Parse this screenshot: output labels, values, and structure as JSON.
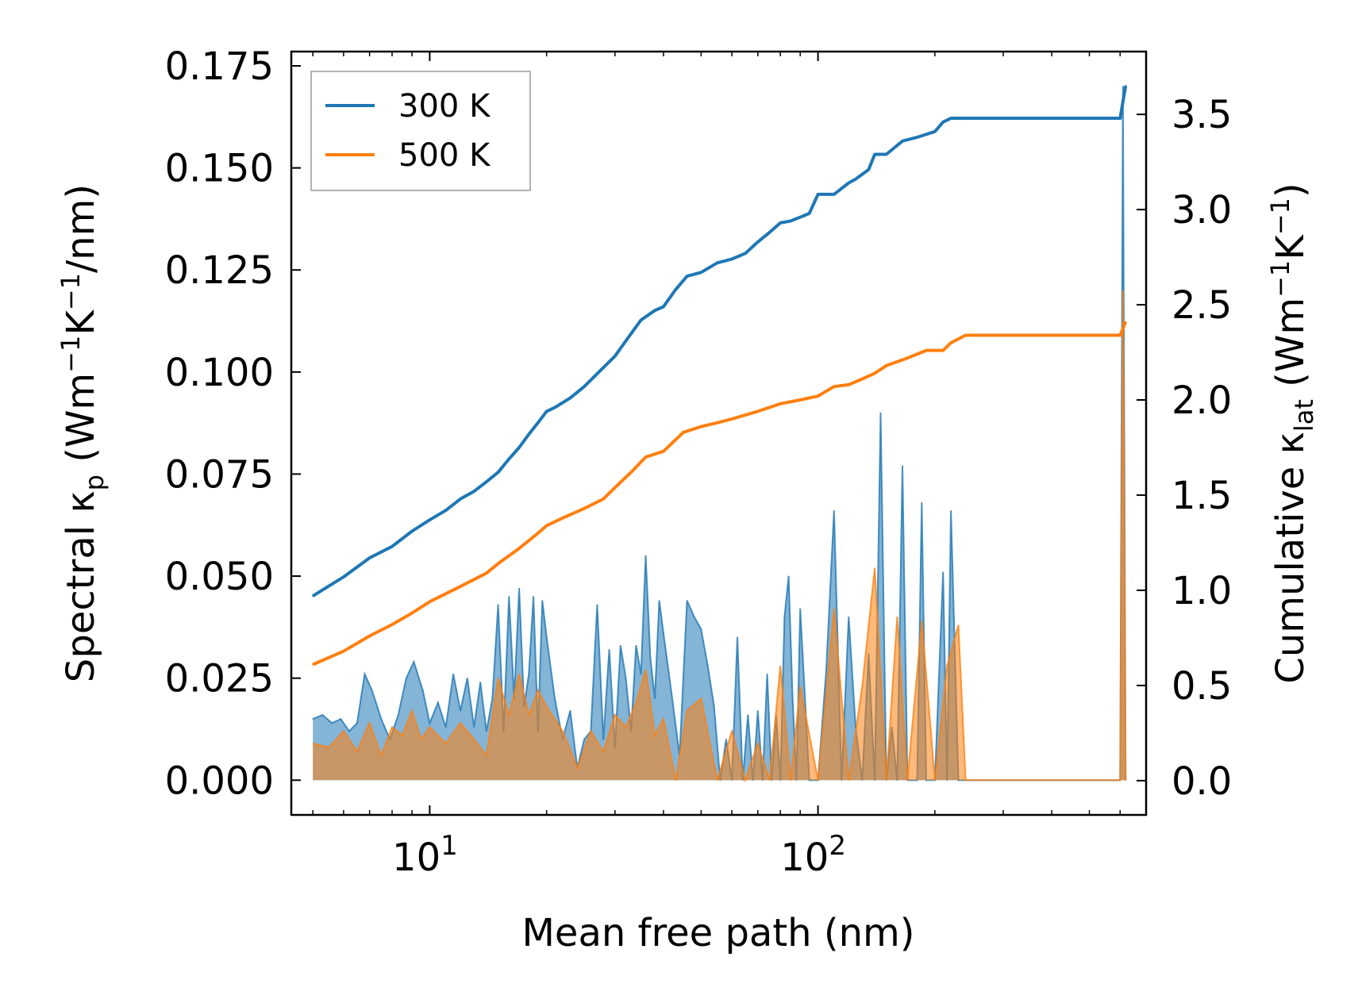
{
  "chart_data": {
    "type": "line",
    "xlabel": "Mean free path (nm)",
    "xscale": "log",
    "xlim": [
      4.4,
      700
    ],
    "x_ticks": [
      {
        "value": 10,
        "mantissa": "10",
        "exponent": "1"
      },
      {
        "value": 100,
        "mantissa": "10",
        "exponent": "2"
      }
    ],
    "y_left": {
      "label_parts": [
        "Spectral κ",
        "p",
        " (Wm",
        "−1",
        "K",
        "−1",
        "/nm)"
      ],
      "ylim": [
        -0.0085,
        0.1785
      ],
      "ticks": [
        "0.000",
        "0.025",
        "0.050",
        "0.075",
        "0.100",
        "0.125",
        "0.150",
        "0.175"
      ],
      "tick_values": [
        0,
        0.025,
        0.05,
        0.075,
        0.1,
        0.125,
        0.15,
        0.175
      ]
    },
    "y_right": {
      "label_parts": [
        "Cumulative κ",
        "lat",
        " (Wm",
        "−1",
        "K",
        "−1",
        ")"
      ],
      "ylim": [
        -0.18,
        3.83
      ],
      "ticks": [
        "0.0",
        "0.5",
        "1.0",
        "1.5",
        "2.0",
        "2.5",
        "3.0",
        "3.5"
      ],
      "tick_values": [
        0,
        0.5,
        1,
        1.5,
        2,
        2.5,
        3,
        3.5
      ]
    },
    "legend": {
      "placement": "upper-left",
      "entries": [
        "300 K",
        "500 K"
      ]
    },
    "colors": {
      "300 K": "#1f77b4",
      "500 K": "#ff7f0e"
    },
    "series": [
      {
        "name": "300 K",
        "axis": "right",
        "kind": "cumulative",
        "x": [
          5,
          6,
          7,
          8,
          9,
          10,
          11,
          12,
          13,
          14,
          15,
          16,
          17,
          18,
          19,
          20,
          21,
          23,
          25,
          28,
          30,
          32,
          35,
          38,
          40,
          43,
          46,
          50,
          55,
          60,
          65,
          70,
          75,
          80,
          85,
          90,
          95,
          100,
          110,
          120,
          125,
          135,
          140,
          150,
          165,
          180,
          200,
          210,
          220,
          240,
          600,
          620
        ],
        "y": [
          0.97,
          1.07,
          1.17,
          1.23,
          1.31,
          1.37,
          1.42,
          1.48,
          1.52,
          1.57,
          1.62,
          1.69,
          1.75,
          1.82,
          1.88,
          1.94,
          1.96,
          2.01,
          2.07,
          2.17,
          2.23,
          2.31,
          2.42,
          2.47,
          2.49,
          2.58,
          2.65,
          2.67,
          2.72,
          2.74,
          2.77,
          2.83,
          2.88,
          2.93,
          2.94,
          2.96,
          2.98,
          3.08,
          3.08,
          3.14,
          3.16,
          3.21,
          3.29,
          3.29,
          3.36,
          3.38,
          3.41,
          3.46,
          3.48,
          3.48,
          3.48,
          3.65
        ]
      },
      {
        "name": "500 K",
        "axis": "right",
        "kind": "cumulative",
        "x": [
          5,
          6,
          7,
          8,
          9,
          10,
          12,
          14,
          15,
          17,
          19,
          20,
          22,
          25,
          28,
          30,
          33,
          36,
          40,
          45,
          50,
          55,
          60,
          70,
          80,
          90,
          100,
          110,
          120,
          130,
          140,
          150,
          170,
          190,
          210,
          220,
          240,
          600,
          620
        ],
        "y": [
          0.61,
          0.68,
          0.76,
          0.82,
          0.88,
          0.94,
          1.02,
          1.09,
          1.14,
          1.22,
          1.3,
          1.34,
          1.38,
          1.43,
          1.48,
          1.54,
          1.62,
          1.7,
          1.73,
          1.83,
          1.86,
          1.88,
          1.9,
          1.94,
          1.98,
          2.0,
          2.02,
          2.07,
          2.08,
          2.11,
          2.14,
          2.18,
          2.22,
          2.26,
          2.26,
          2.3,
          2.34,
          2.34,
          2.41
        ]
      },
      {
        "name": "300 K",
        "axis": "left",
        "kind": "spectral",
        "x": [
          5,
          5.3,
          5.6,
          5.9,
          6.2,
          6.5,
          6.8,
          7.1,
          7.5,
          7.9,
          8.3,
          8.7,
          9.1,
          9.6,
          10,
          10.5,
          11,
          11.5,
          12,
          12.5,
          13,
          13.5,
          14,
          14.5,
          15,
          15.5,
          16,
          16.5,
          17,
          17.5,
          18,
          18.5,
          19,
          19.5,
          20,
          21,
          22,
          23,
          24,
          25,
          26,
          27,
          28,
          29,
          30,
          31,
          32,
          33,
          34,
          35,
          36,
          37,
          38,
          39,
          40,
          42,
          44,
          46,
          48,
          50,
          52,
          54,
          56,
          58,
          60,
          62,
          64,
          66,
          68,
          70,
          72,
          74,
          76,
          78,
          80,
          82,
          84,
          86,
          88,
          90,
          95,
          100,
          105,
          110,
          115,
          120,
          125,
          130,
          135,
          140,
          145,
          150,
          155,
          160,
          165,
          170,
          180,
          185,
          190,
          200,
          210,
          215,
          220,
          230,
          240,
          250,
          400,
          600,
          610,
          620
        ],
        "y": [
          0.015,
          0.016,
          0.014,
          0.015,
          0.012,
          0.014,
          0.026,
          0.022,
          0.015,
          0.01,
          0.016,
          0.025,
          0.029,
          0.022,
          0.014,
          0.019,
          0.013,
          0.026,
          0.017,
          0.025,
          0.013,
          0.024,
          0.012,
          0.02,
          0.043,
          0.012,
          0.045,
          0.02,
          0.047,
          0.018,
          0.026,
          0.045,
          0.012,
          0.044,
          0.035,
          0.02,
          0.01,
          0.017,
          0.003,
          0.01,
          0.012,
          0.043,
          0.01,
          0.032,
          0.008,
          0.033,
          0.025,
          0.012,
          0.033,
          0.026,
          0.055,
          0.03,
          0.02,
          0.044,
          0.036,
          0.021,
          0.006,
          0.044,
          0.04,
          0.037,
          0.028,
          0.018,
          0,
          0.01,
          0,
          0.035,
          0,
          0.016,
          0,
          0.017,
          0,
          0.026,
          0,
          0.016,
          0,
          0.04,
          0.05,
          0.02,
          0,
          0.042,
          0,
          0,
          0.027,
          0.066,
          0,
          0.04,
          0.013,
          0,
          0.031,
          0,
          0.09,
          0,
          0.013,
          0,
          0.077,
          0,
          0,
          0.068,
          0,
          0,
          0.051,
          0,
          0.066,
          0,
          0,
          0,
          0,
          0,
          0.17,
          0
        ]
      },
      {
        "name": "500 K",
        "axis": "left",
        "kind": "spectral",
        "x": [
          5,
          5.5,
          6,
          6.5,
          7,
          7.5,
          8,
          8.5,
          9,
          9.5,
          10,
          11,
          12,
          13,
          14,
          15,
          16,
          17,
          18,
          19,
          20,
          22,
          24,
          26,
          28,
          30,
          32,
          34,
          36,
          38,
          40,
          43,
          46,
          50,
          55,
          60,
          65,
          70,
          75,
          80,
          85,
          90,
          100,
          110,
          120,
          130,
          140,
          150,
          160,
          170,
          185,
          200,
          215,
          230,
          240,
          250,
          600,
          610,
          620
        ],
        "y": [
          0.009,
          0.008,
          0.012,
          0.007,
          0.014,
          0.006,
          0.013,
          0.011,
          0.017,
          0.01,
          0.013,
          0.009,
          0.014,
          0.01,
          0.006,
          0.025,
          0.016,
          0.026,
          0.016,
          0.022,
          0.018,
          0.012,
          0.003,
          0.012,
          0.007,
          0.016,
          0.013,
          0.019,
          0.027,
          0.011,
          0.015,
          0,
          0.017,
          0.02,
          0,
          0.012,
          0,
          0.009,
          0,
          0.028,
          0,
          0.023,
          0,
          0.042,
          0,
          0.023,
          0.052,
          0,
          0.04,
          0,
          0.039,
          0,
          0.028,
          0.038,
          0,
          0,
          0,
          0.12,
          0
        ]
      }
    ]
  }
}
